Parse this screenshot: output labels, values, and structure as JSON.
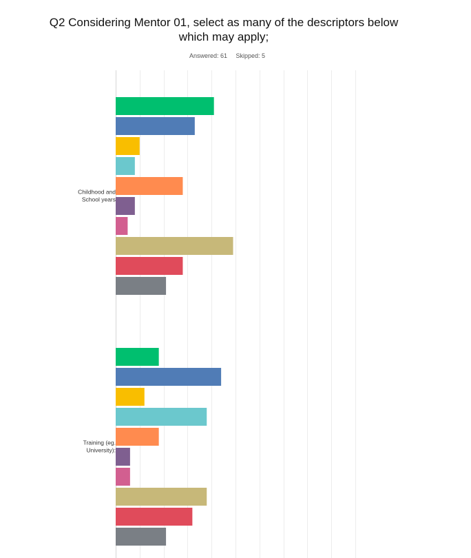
{
  "chart": {
    "title_line1": "Q2 Considering Mentor 01, select as many of the descriptors below",
    "title_line2": "which may apply;",
    "answered": "Answered: 61",
    "skipped": "Skipped: 5"
  },
  "chart_data": {
    "type": "bar",
    "orientation": "horizontal",
    "title": "Q2 Considering Mentor 01, select as many of the descriptors below which may apply;",
    "categories": [
      "Childhood and School years",
      "Training (eg. University):"
    ],
    "grid": true,
    "xlim": [
      0,
      100
    ],
    "series": [
      {
        "color": "#00bf6f",
        "values": [
          41,
          18
        ]
      },
      {
        "color": "#507cb6",
        "values": [
          33,
          44
        ]
      },
      {
        "color": "#f9be00",
        "values": [
          10,
          12
        ]
      },
      {
        "color": "#6bc8cd",
        "values": [
          8,
          38
        ]
      },
      {
        "color": "#ff8b4f",
        "values": [
          28,
          18
        ]
      },
      {
        "color": "#7f5f90",
        "values": [
          8,
          6
        ]
      },
      {
        "color": "#d25f90",
        "values": [
          5,
          6
        ]
      },
      {
        "color": "#c7b879",
        "values": [
          49,
          38
        ]
      },
      {
        "color": "#e04b5b",
        "values": [
          28,
          32
        ]
      },
      {
        "color": "#7a7f85",
        "values": [
          21,
          21
        ]
      }
    ]
  }
}
